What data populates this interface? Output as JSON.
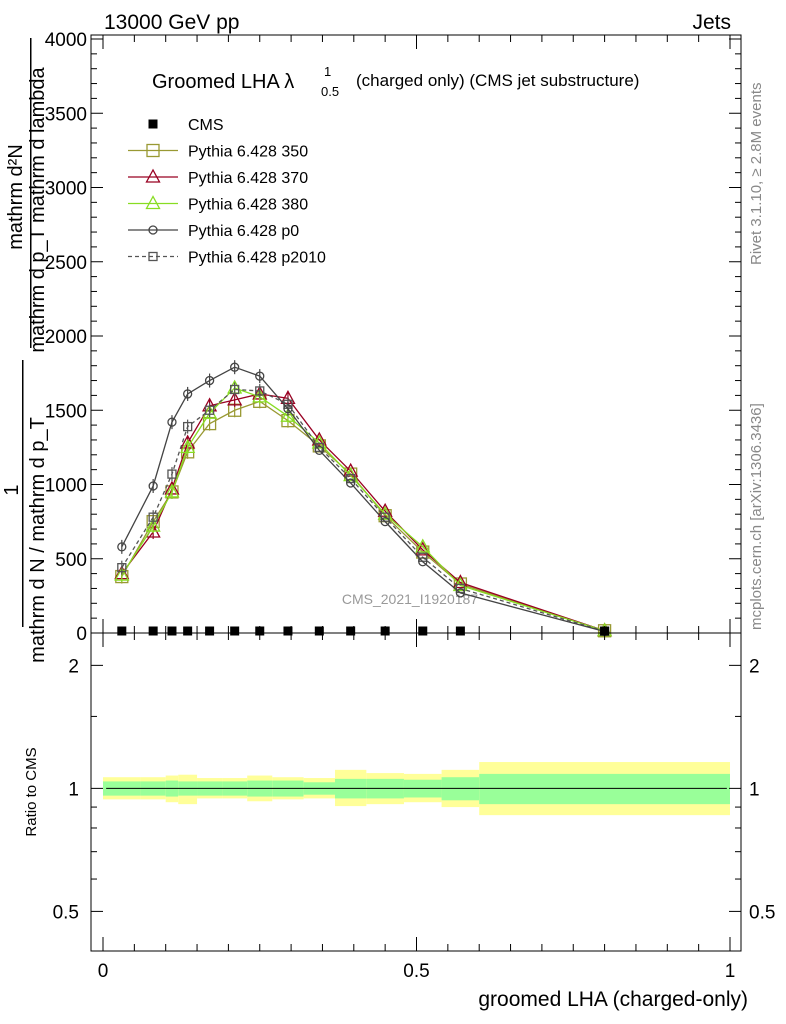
{
  "header": {
    "left": "13000 GeV pp",
    "right": "Jets"
  },
  "side_text": {
    "rivet": "Rivet 3.1.10, ≥ 2.8M events",
    "mcplots": "mcplots.cern.ch [arXiv:1306.3436]"
  },
  "watermark": "CMS_2021_I1920187",
  "chart_data": [
    {
      "type": "line",
      "title": "Groomed LHA λ",
      "title_sup": "1",
      "title_sub": "0.5",
      "title_suffix": "(charged only) (CMS jet substructure)",
      "xlabel": "groomed LHA (charged-only)",
      "ylabel_lines": [
        "mathrm d²N",
        "mathrm d p_T mathrm d lambda",
        "1",
        "mathrm d N / mathrm d p_T"
      ],
      "xlim": [
        0,
        1
      ],
      "ylim": [
        0,
        4000
      ],
      "yticks": [
        0,
        500,
        1000,
        1500,
        2000,
        2500,
        3000,
        3500,
        4000
      ],
      "ytick_labels": [
        "0",
        "500",
        "1000",
        "1500",
        "2000",
        "2500",
        "3000",
        "3500",
        "4000"
      ],
      "legend_position": "top-left",
      "legend": [
        {
          "name": "CMS",
          "color": "#000000",
          "marker": "filled-square",
          "dash": false
        },
        {
          "name": "Pythia 6.428 350",
          "color": "#999933",
          "marker": "open-square",
          "dash": false
        },
        {
          "name": "Pythia 6.428 370",
          "color": "#990022",
          "marker": "open-triangle",
          "dash": false
        },
        {
          "name": "Pythia 6.428 380",
          "color": "#88dd22",
          "marker": "open-triangle",
          "dash": false
        },
        {
          "name": "Pythia 6.428 p0",
          "color": "#444444",
          "marker": "open-circle",
          "dash": false
        },
        {
          "name": "Pythia 6.428 p2010",
          "color": "#555555",
          "marker": "open-square-small",
          "dash": true
        }
      ],
      "x": [
        0.03,
        0.08,
        0.11,
        0.135,
        0.17,
        0.21,
        0.25,
        0.295,
        0.345,
        0.395,
        0.45,
        0.51,
        0.57,
        0.8
      ],
      "series": [
        {
          "name": "CMS",
          "values": [
            0,
            0,
            0,
            0,
            0,
            0,
            0,
            0,
            0,
            0,
            0,
            0,
            0,
            0
          ]
        },
        {
          "name": "Pythia 6.428 350",
          "values": [
            380,
            750,
            950,
            1220,
            1410,
            1500,
            1560,
            1430,
            1260,
            1070,
            790,
            545,
            330,
            15
          ]
        },
        {
          "name": "Pythia 6.428 370",
          "values": [
            400,
            680,
            970,
            1280,
            1530,
            1570,
            1610,
            1580,
            1300,
            1090,
            820,
            560,
            340,
            15
          ]
        },
        {
          "name": "Pythia 6.428 380",
          "values": [
            390,
            720,
            950,
            1250,
            1480,
            1650,
            1590,
            1460,
            1280,
            1060,
            800,
            580,
            320,
            15
          ]
        },
        {
          "name": "Pythia 6.428 p0",
          "values": [
            580,
            990,
            1420,
            1610,
            1700,
            1790,
            1730,
            1510,
            1230,
            1010,
            750,
            480,
            270,
            10
          ]
        },
        {
          "name": "Pythia 6.428 p2010",
          "values": [
            440,
            780,
            1070,
            1390,
            1500,
            1640,
            1630,
            1540,
            1250,
            1040,
            780,
            510,
            300,
            12
          ]
        }
      ]
    },
    {
      "type": "area",
      "ylabel": "Ratio to CMS",
      "xlabel": "groomed LHA (charged-only)",
      "scale": "log",
      "ylim": [
        0.4,
        2.4
      ],
      "yticks": [
        0.5,
        1,
        2
      ],
      "ytick_labels": [
        "0.5",
        "1",
        "2"
      ],
      "xticks": [
        0,
        0.5,
        1
      ],
      "xtick_labels": [
        "0",
        "0.5",
        "1"
      ],
      "bins": [
        0,
        0.06,
        0.1,
        0.12,
        0.15,
        0.19,
        0.23,
        0.27,
        0.32,
        0.37,
        0.42,
        0.48,
        0.54,
        0.6,
        1.0
      ],
      "band_inner_up": [
        1.04,
        1.04,
        1.045,
        1.04,
        1.04,
        1.04,
        1.045,
        1.045,
        1.035,
        1.055,
        1.055,
        1.05,
        1.065,
        1.085,
        1.085
      ],
      "band_inner_down": [
        0.96,
        0.96,
        0.955,
        0.96,
        0.96,
        0.96,
        0.955,
        0.955,
        0.965,
        0.945,
        0.945,
        0.95,
        0.935,
        0.915,
        0.915
      ],
      "band_outer_up": [
        1.065,
        1.065,
        1.075,
        1.08,
        1.06,
        1.06,
        1.075,
        1.065,
        1.06,
        1.11,
        1.09,
        1.085,
        1.11,
        1.16,
        1.16
      ],
      "band_outer_down": [
        0.94,
        0.94,
        0.925,
        0.915,
        0.945,
        0.945,
        0.93,
        0.94,
        0.945,
        0.905,
        0.915,
        0.925,
        0.9,
        0.86,
        0.86
      ],
      "colors": {
        "inner": "#99ff99",
        "outer": "#ffff99",
        "line": "#000000"
      }
    }
  ]
}
